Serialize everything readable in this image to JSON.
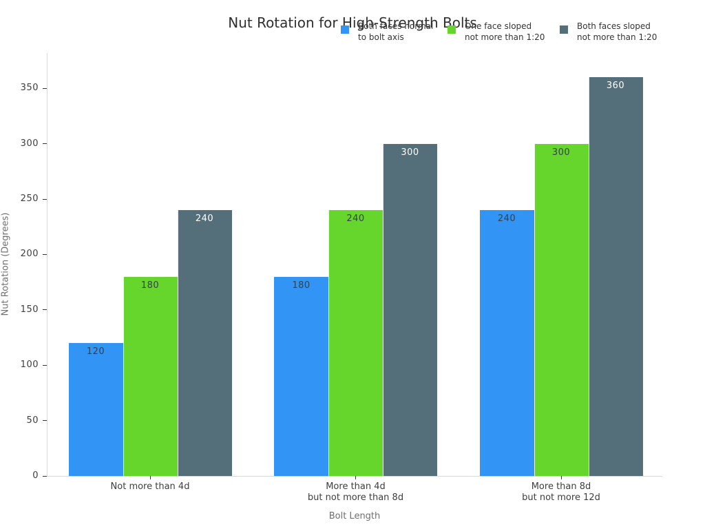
{
  "title": "Nut Rotation for High-Strength Bolts",
  "chart_data": {
    "type": "bar",
    "title": "Nut Rotation for High-Strength Bolts",
    "xlabel": "Bolt Length",
    "ylabel": "Nut Rotation (Degrees)",
    "categories": [
      [
        "Not more than 4d"
      ],
      [
        "More than 4d",
        "but not more than 8d"
      ],
      [
        "More than 8d",
        "but not more 12d"
      ]
    ],
    "series": [
      {
        "name": [
          "Both faces normal",
          "to bolt axis"
        ],
        "color": "#3295f5",
        "values": [
          120,
          180,
          240
        ],
        "value_label_color": "#33404a"
      },
      {
        "name": [
          "One face sloped",
          "not more than 1:20"
        ],
        "color": "#66d62c",
        "values": [
          180,
          240,
          300
        ],
        "value_label_color": "#33404a"
      },
      {
        "name": [
          "Both faces sloped",
          "not more than 1:20"
        ],
        "color": "#546e7a",
        "values": [
          240,
          300,
          360
        ],
        "value_label_color": "#ffffff"
      }
    ],
    "yticks": [
      0,
      50,
      100,
      150,
      200,
      250,
      300,
      350
    ],
    "ylim": [
      0,
      382
    ],
    "grid": false,
    "legend_position": "top",
    "value_labels": true
  },
  "colors": {
    "background": "#ffffff",
    "title_text": "#2f2f2f",
    "tick_label": "#3d3d3d",
    "axis_title": "#707070",
    "spine": "#d9d9d9",
    "tick_mark": "#333333",
    "legend_text": "#333333",
    "series_blue": "#3295f5",
    "series_green": "#66d62c",
    "series_slate": "#546e7a"
  }
}
